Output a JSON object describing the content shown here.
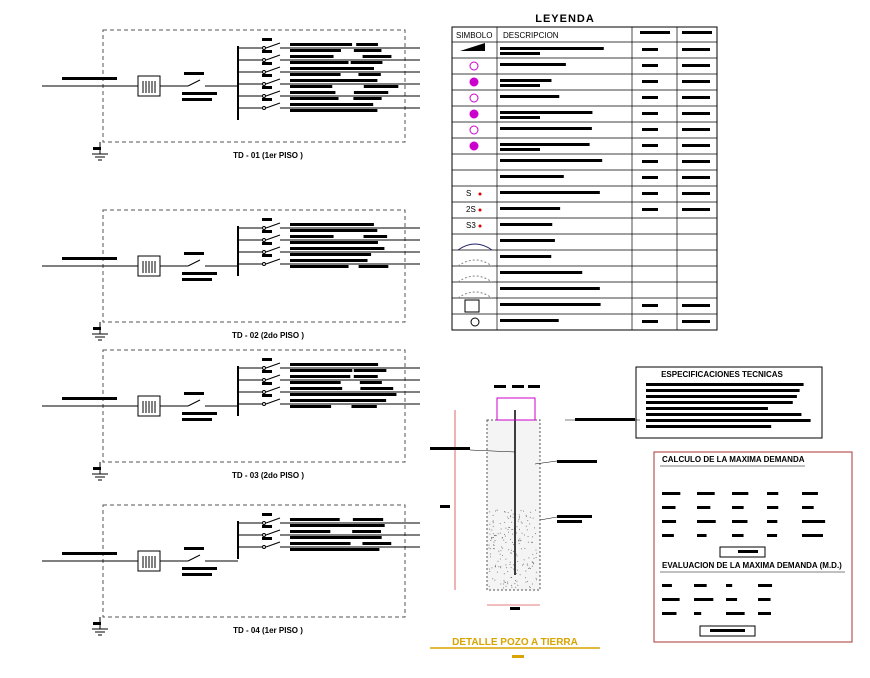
{
  "legend": {
    "title": "LEYENDA",
    "headers": [
      "SIMBOLO",
      "DESCRIPCION"
    ],
    "symbols": [
      "S",
      "2S",
      "S3"
    ]
  },
  "panels": [
    {
      "label": "TD - 01 (1er PISO )"
    },
    {
      "label": "TD - 02 (2do PISO )"
    },
    {
      "label": "TD - 03 (2do PISO )"
    },
    {
      "label": "TD - 04 (1er PISO )"
    }
  ],
  "specs": {
    "title": "ESPECIFICACIONES TECNICAS"
  },
  "calc": {
    "title": "CALCULO DE LA MAXIMA DEMANDA",
    "subtitle": "EVALUACION  DE LA MAXIMA DEMANDA (M.D.)"
  },
  "detail": {
    "title": "DETALLE POZO A TIERRA"
  }
}
